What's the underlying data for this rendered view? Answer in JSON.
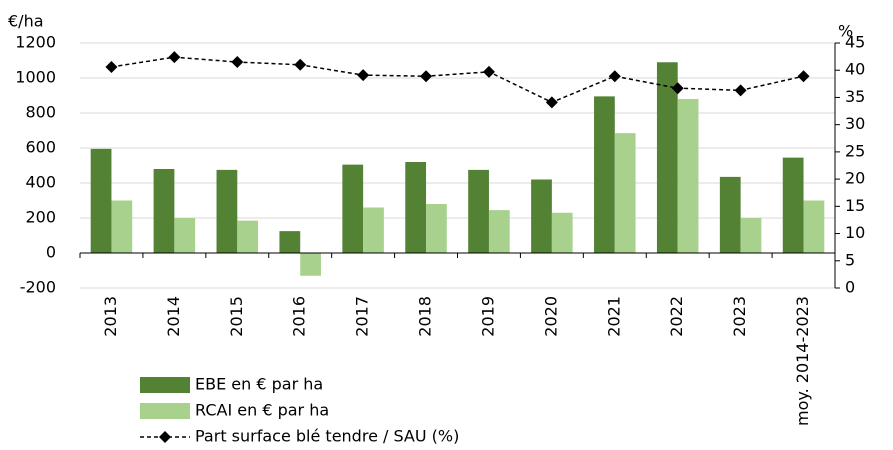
{
  "chart_data": {
    "type": "bar",
    "y_label": "€/ha",
    "y2_label": "%",
    "categories": [
      "2013",
      "2014",
      "2015",
      "2016",
      "2017",
      "2018",
      "2019",
      "2020",
      "2021",
      "2022",
      "2023",
      "moy. 2014-2023"
    ],
    "series": [
      {
        "name": "EBE en € par ha",
        "color": "#548235",
        "type": "bar",
        "values": [
          595,
          480,
          475,
          125,
          505,
          520,
          475,
          420,
          895,
          1090,
          435,
          545
        ]
      },
      {
        "name": "RCAI en € par ha",
        "color": "#a9d18e",
        "type": "bar",
        "values": [
          300,
          200,
          185,
          -130,
          260,
          280,
          245,
          230,
          685,
          880,
          200,
          300
        ]
      },
      {
        "name": "Part surface blé tendre / SAU (%)",
        "color": "#000000",
        "type": "line",
        "axis": "y2",
        "values": [
          40.6,
          42.4,
          41.5,
          41.0,
          39.1,
          38.9,
          39.7,
          34.1,
          38.9,
          36.7,
          36.3,
          38.9
        ]
      }
    ],
    "ylim": [
      -200,
      1200
    ],
    "yticks": [
      -200,
      0,
      200,
      400,
      600,
      800,
      1000,
      1200
    ],
    "y2lim": [
      0,
      45
    ],
    "y2ticks": [
      0,
      5,
      10,
      15,
      20,
      25,
      30,
      35,
      40,
      45
    ],
    "grid": true
  }
}
